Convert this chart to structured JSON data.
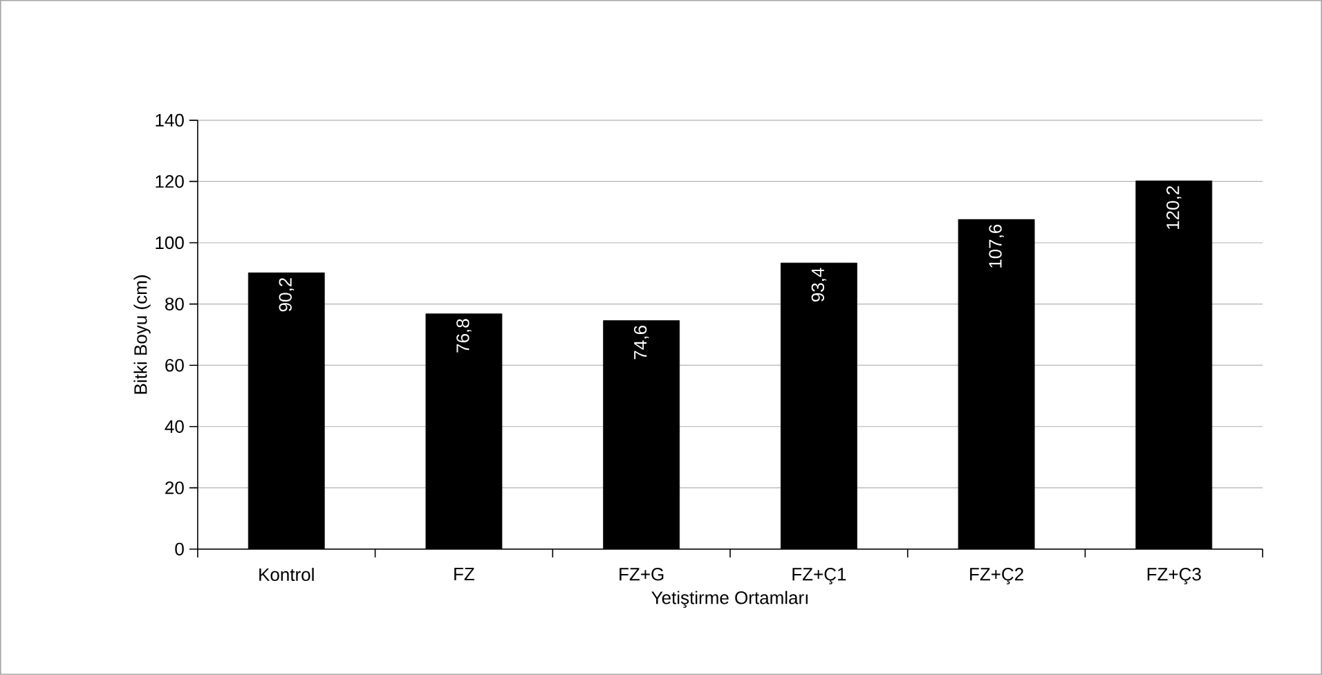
{
  "chart_data": {
    "type": "bar",
    "xlabel": "Yetiştirme Ortamları",
    "ylabel": "Bitki Boyu (cm)",
    "categories": [
      "Kontrol",
      "FZ",
      "FZ+G",
      "FZ+Ç1",
      "FZ+Ç2",
      "FZ+Ç3"
    ],
    "values": [
      90.2,
      76.8,
      74.6,
      93.4,
      107.6,
      120.2
    ],
    "value_labels": [
      "90,2",
      "76,8",
      "74,6",
      "93,4",
      "107,6",
      "120,2"
    ],
    "color": "#000000",
    "ylim": [
      0,
      140
    ],
    "yticks": [
      0,
      20,
      40,
      60,
      80,
      100,
      120,
      140
    ],
    "grid": "y"
  }
}
